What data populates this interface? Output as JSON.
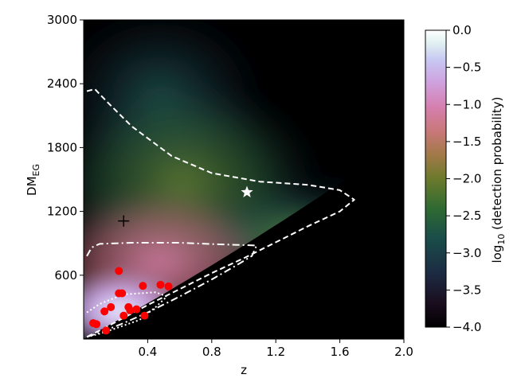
{
  "chart_data": {
    "type": "heatmap",
    "title": "",
    "xlabel": "z",
    "ylabel": "DM",
    "ylabel_sub": "EG",
    "xlim": [
      0.0,
      2.0
    ],
    "ylim": [
      0,
      3000
    ],
    "x_ticks": [
      {
        "v": 0.4,
        "label": "0.4"
      },
      {
        "v": 0.8,
        "label": "0.8"
      },
      {
        "v": 1.2,
        "label": "1.2"
      },
      {
        "v": 1.6,
        "label": "1.6"
      },
      {
        "v": 2.0,
        "label": "2.0"
      }
    ],
    "y_ticks": [
      {
        "v": 600,
        "label": "600"
      },
      {
        "v": 1200,
        "label": "1200"
      },
      {
        "v": 1800,
        "label": "1800"
      },
      {
        "v": 2400,
        "label": "2400"
      },
      {
        "v": 3000,
        "label": "3000"
      }
    ],
    "colorbar": {
      "label_prefix": "log",
      "label_sub": "10",
      "label_suffix": " (detection probability)",
      "range": [
        -4.0,
        0.0
      ],
      "colormap": "cubehelix",
      "ticks": [
        {
          "v": 0.0,
          "label": "0.0"
        },
        {
          "v": -0.5,
          "label": "−0.5"
        },
        {
          "v": -1.0,
          "label": "−1.0"
        },
        {
          "v": -1.5,
          "label": "−1.5"
        },
        {
          "v": -2.0,
          "label": "−2.0"
        },
        {
          "v": -2.5,
          "label": "−2.5"
        },
        {
          "v": -3.0,
          "label": "−3.0"
        },
        {
          "v": -3.5,
          "label": "−3.5"
        },
        {
          "v": -4.0,
          "label": "−4.0"
        }
      ]
    },
    "contours": [
      {
        "style": "dashed",
        "color": "#ffffff",
        "points": [
          [
            0.02,
            2330
          ],
          [
            0.07,
            2350
          ],
          [
            0.14,
            2240
          ],
          [
            0.3,
            2000
          ],
          [
            0.55,
            1720
          ],
          [
            0.8,
            1560
          ],
          [
            1.1,
            1480
          ],
          [
            1.4,
            1450
          ],
          [
            1.6,
            1400
          ],
          [
            1.69,
            1310
          ],
          [
            1.6,
            1200
          ],
          [
            1.4,
            1060
          ],
          [
            1.2,
            910
          ],
          [
            1.0,
            760
          ],
          [
            0.8,
            620
          ],
          [
            0.6,
            470
          ],
          [
            0.4,
            320
          ],
          [
            0.25,
            200
          ],
          [
            0.1,
            80
          ],
          [
            0.02,
            20
          ]
        ]
      },
      {
        "style": "dashdot",
        "color": "#ffffff",
        "points": [
          [
            0.02,
            780
          ],
          [
            0.05,
            860
          ],
          [
            0.1,
            895
          ],
          [
            0.3,
            905
          ],
          [
            0.6,
            905
          ],
          [
            0.85,
            890
          ],
          [
            1.08,
            880
          ],
          [
            1.05,
            780
          ],
          [
            0.95,
            690
          ],
          [
            0.8,
            560
          ],
          [
            0.6,
            400
          ],
          [
            0.4,
            250
          ],
          [
            0.25,
            150
          ],
          [
            0.1,
            60
          ],
          [
            0.02,
            20
          ]
        ]
      },
      {
        "style": "dotted",
        "color": "#ffffff",
        "points": [
          [
            0.02,
            250
          ],
          [
            0.1,
            330
          ],
          [
            0.25,
            420
          ],
          [
            0.45,
            440
          ],
          [
            0.52,
            400
          ],
          [
            0.45,
            300
          ],
          [
            0.35,
            180
          ],
          [
            0.2,
            100
          ],
          [
            0.1,
            50
          ],
          [
            0.02,
            20
          ]
        ]
      }
    ],
    "points": [
      {
        "z": 0.06,
        "dm": 150
      },
      {
        "z": 0.08,
        "dm": 140
      },
      {
        "z": 0.13,
        "dm": 260
      },
      {
        "z": 0.14,
        "dm": 80
      },
      {
        "z": 0.17,
        "dm": 300
      },
      {
        "z": 0.22,
        "dm": 640
      },
      {
        "z": 0.22,
        "dm": 430
      },
      {
        "z": 0.24,
        "dm": 430
      },
      {
        "z": 0.25,
        "dm": 220
      },
      {
        "z": 0.28,
        "dm": 300
      },
      {
        "z": 0.29,
        "dm": 270
      },
      {
        "z": 0.33,
        "dm": 280
      },
      {
        "z": 0.37,
        "dm": 500
      },
      {
        "z": 0.38,
        "dm": 220
      },
      {
        "z": 0.48,
        "dm": 510
      },
      {
        "z": 0.53,
        "dm": 495
      }
    ],
    "markers": [
      {
        "symbol": "plus",
        "z": 0.25,
        "dm": 1110,
        "color": "#000000"
      },
      {
        "symbol": "star",
        "z": 1.02,
        "dm": 1380,
        "color": "#ffffff"
      }
    ],
    "point_color": "#ff0000"
  }
}
